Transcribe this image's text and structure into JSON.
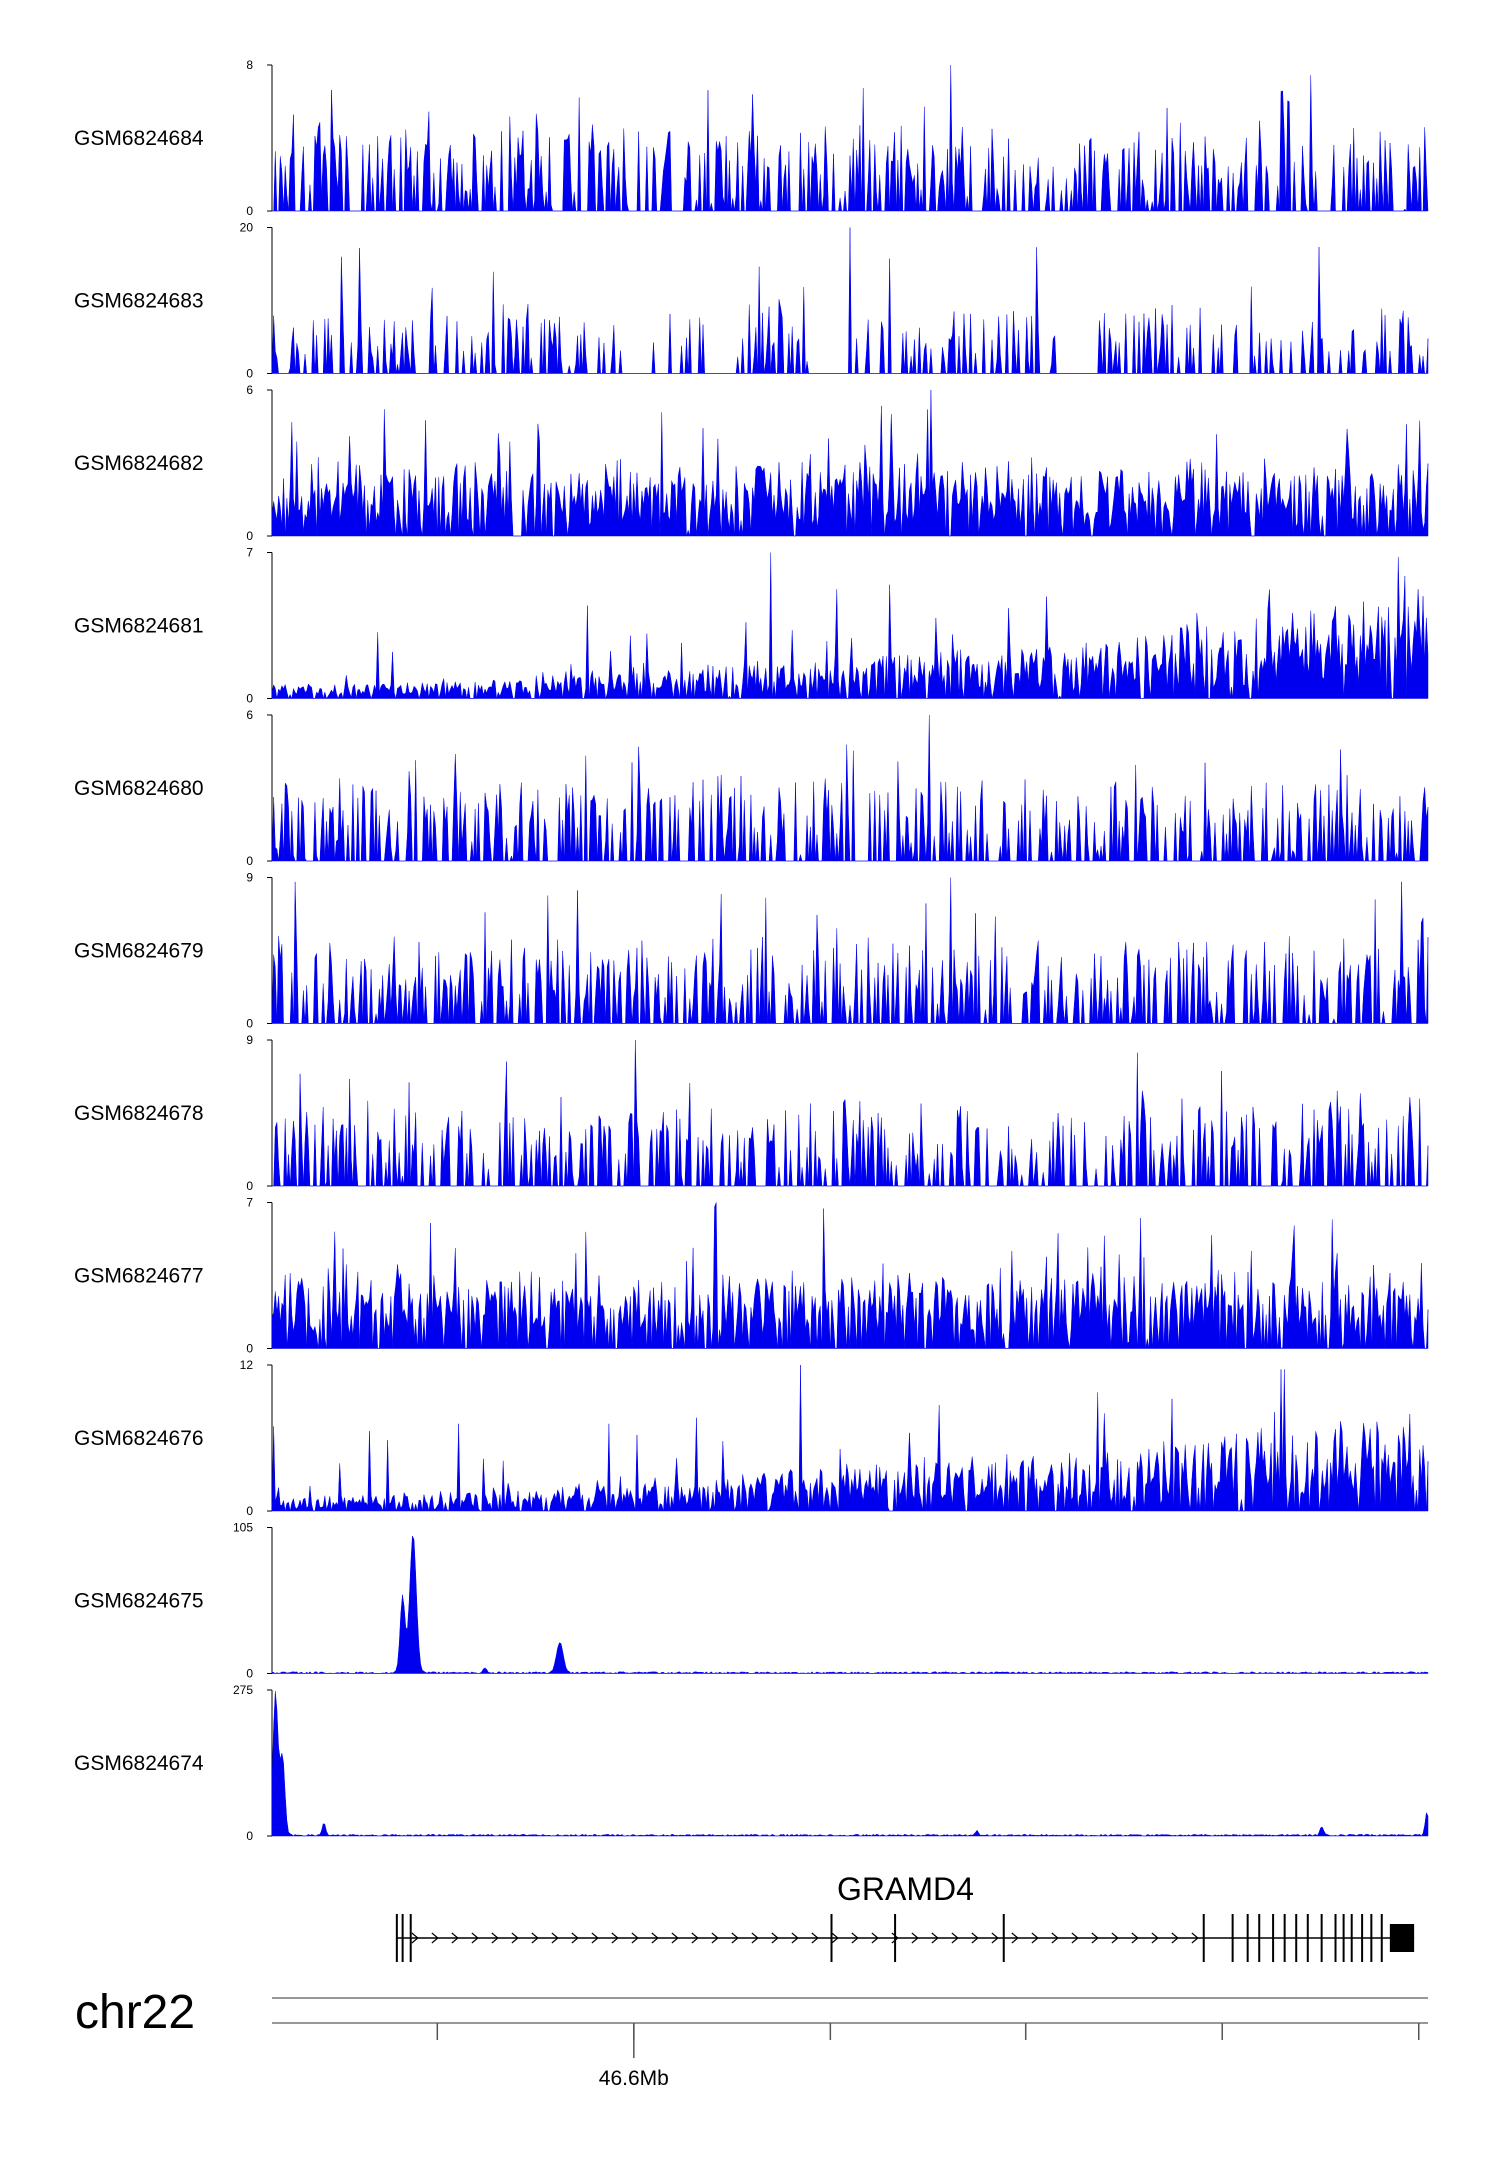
{
  "chart_data": {
    "type": "area",
    "title": "",
    "chromosome": "chr22",
    "series_color": "#0000ee",
    "series": [
      {
        "name": "GSM6824684",
        "ymax": 8,
        "ymin": 0,
        "pattern": "spiky",
        "profile": "uniform"
      },
      {
        "name": "GSM6824683",
        "ymax": 20,
        "ymin": 0,
        "pattern": "sparse",
        "profile": "uniform"
      },
      {
        "name": "GSM6824682",
        "ymax": 6,
        "ymin": 0,
        "pattern": "dense",
        "profile": "uniform"
      },
      {
        "name": "GSM6824681",
        "ymax": 7,
        "ymin": 0,
        "pattern": "dense",
        "profile": "rising"
      },
      {
        "name": "GSM6824680",
        "ymax": 6,
        "ymin": 0,
        "pattern": "spiky",
        "profile": "uniform"
      },
      {
        "name": "GSM6824679",
        "ymax": 9,
        "ymin": 0,
        "pattern": "spiky",
        "profile": "uniform"
      },
      {
        "name": "GSM6824678",
        "ymax": 9,
        "ymin": 0,
        "pattern": "spiky",
        "profile": "uniform"
      },
      {
        "name": "GSM6824677",
        "ymax": 7,
        "ymin": 0,
        "pattern": "dense",
        "profile": "uniform"
      },
      {
        "name": "GSM6824676",
        "ymax": 12,
        "ymin": 0,
        "pattern": "dense",
        "profile": "rising"
      },
      {
        "name": "GSM6824675",
        "ymax": 105,
        "ymin": 0,
        "pattern": "peaks",
        "peaks": [
          {
            "pos": 0.122,
            "height": 100,
            "width": 0.004
          },
          {
            "pos": 0.113,
            "height": 55,
            "width": 0.003
          },
          {
            "pos": 0.249,
            "height": 22,
            "width": 0.004
          },
          {
            "pos": 0.184,
            "height": 4,
            "width": 0.002
          }
        ]
      },
      {
        "name": "GSM6824674",
        "ymax": 275,
        "ymin": 0,
        "pattern": "peaks",
        "peaks": [
          {
            "pos": 0.003,
            "height": 270,
            "width": 0.003
          },
          {
            "pos": 0.009,
            "height": 150,
            "width": 0.003
          },
          {
            "pos": 0.045,
            "height": 25,
            "width": 0.002
          },
          {
            "pos": 0.999,
            "height": 45,
            "width": 0.002
          },
          {
            "pos": 0.908,
            "height": 18,
            "width": 0.002
          },
          {
            "pos": 0.61,
            "height": 8,
            "width": 0.002
          }
        ]
      }
    ],
    "gene": {
      "name": "GRAMD4",
      "strand": "+",
      "exons": [
        0.108,
        0.113,
        0.12,
        0.484,
        0.539,
        0.633,
        0.806,
        0.831,
        0.844,
        0.854,
        0.866,
        0.876,
        0.886,
        0.896,
        0.908,
        0.92,
        0.927,
        0.934,
        0.943,
        0.951,
        0.96
      ],
      "last_exon": [
        0.967,
        0.988
      ]
    },
    "x_axis": {
      "major_ticks": [
        0.143,
        0.313,
        0.483,
        0.652,
        0.822,
        0.992
      ],
      "labels": [
        {
          "pos": 0.313,
          "text": "46.6Mb"
        }
      ]
    }
  }
}
